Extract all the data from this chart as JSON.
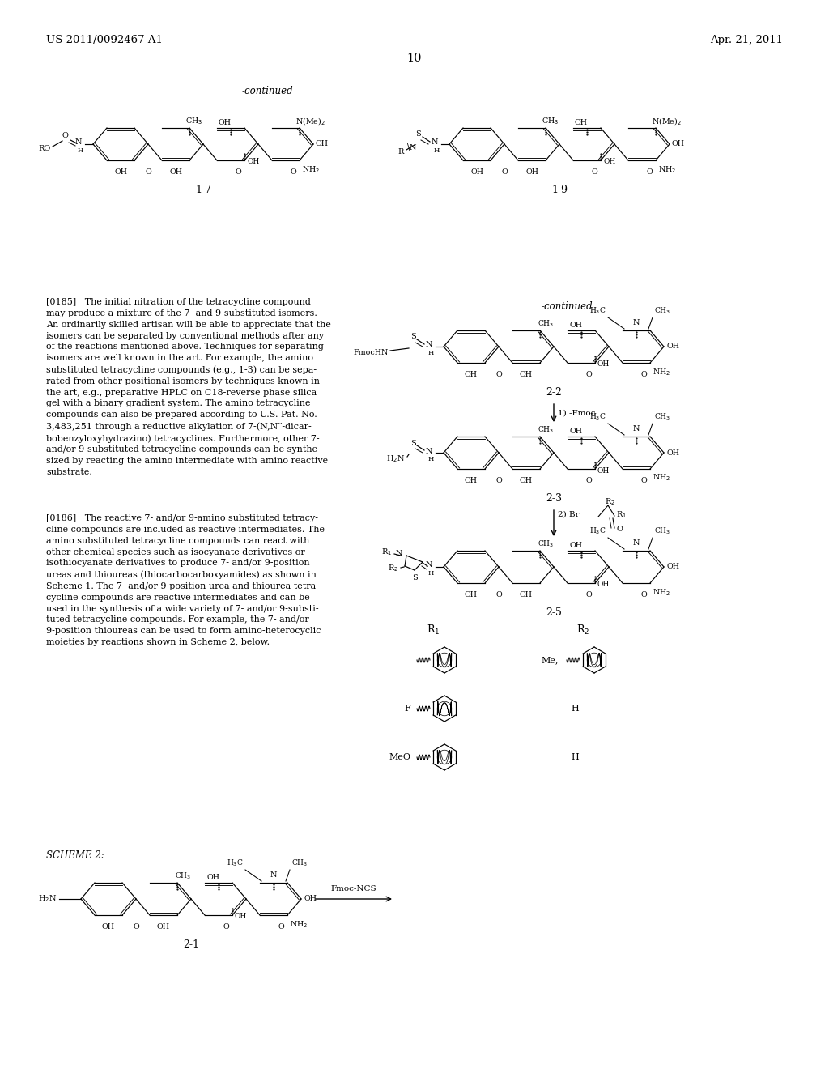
{
  "bg_color": "#ffffff",
  "header_left": "US 2011/0092467 A1",
  "header_right": "Apr. 21, 2011",
  "page_number": "10",
  "para185": "[0185]   The initial nitration of the tetracycline compound\nmay produce a mixture of the 7- and 9-substituted isomers.\nAn ordinarily skilled artisan will be able to appreciate that the\nisomers can be separated by conventional methods after any\nof the reactions mentioned above. Techniques for separating\nisomers are well known in the art. For example, the amino\nsubstituted tetracycline compounds (e.g., 1-3) can be sepa-\nrated from other positional isomers by techniques known in\nthe art, e.g., preparative HPLC on C18-reverse phase silica\ngel with a binary gradient system. The amino tetracycline\ncompounds can also be prepared according to U.S. Pat. No.\n3,483,251 through a reductive alkylation of 7-(N,N′′-dicar-\nbobenzyloxyhydrazino) tetracyclines. Furthermore, other 7-\nand/or 9-substituted tetracycline compounds can be synthe-\nsized by reacting the amino intermediate with amino reactive\nsubstrate.",
  "para186": "[0186]   The reactive 7- and/or 9-amino substituted tetracy-\ncline compounds are included as reactive intermediates. The\namino substituted tetracycline compounds can react with\nother chemical species such as isocyanate derivatives or\nisothiocyanate derivatives to produce 7- and/or 9-position\nureas and thioureas (thiocarbocarboxyamides) as shown in\nScheme 1. The 7- and/or 9-position urea and thiourea tetra-\ncycline compounds are reactive intermediates and can be\nused in the synthesis of a wide variety of 7- and/or 9-substi-\ntuted tetracycline compounds. For example, the 7- and/or\n9-position thioureas can be used to form amino-heterocyclic\nmoieties by reactions shown in Scheme 2, below."
}
